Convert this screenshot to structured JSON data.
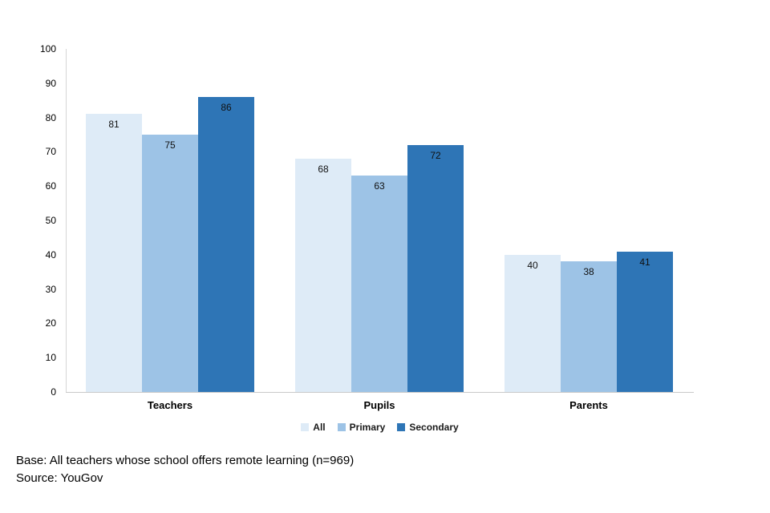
{
  "chart_data": {
    "type": "bar",
    "title": "",
    "xlabel": "",
    "ylabel": "",
    "categories": [
      "Teachers",
      "Pupils",
      "Parents"
    ],
    "series": [
      {
        "name": "All",
        "color": "#DEEBF7",
        "values": [
          81,
          68,
          40
        ]
      },
      {
        "name": "Primary",
        "color": "#9DC3E6",
        "values": [
          75,
          63,
          38
        ]
      },
      {
        "name": "Secondary",
        "color": "#2E75B6",
        "values": [
          86,
          72,
          41
        ]
      }
    ],
    "ylim": [
      0,
      100
    ],
    "yticks": [
      0,
      10,
      20,
      30,
      40,
      50,
      60,
      70,
      80,
      90,
      100
    ],
    "grid": false,
    "value_labels": true,
    "legend_position": "bottom"
  },
  "colors": {
    "axis_line": "#d6d6d6",
    "baseline": "#c9c9c9",
    "background": "#ffffff",
    "label_text": "#000000"
  },
  "footer": {
    "base": "Base: All teachers whose school offers remote learning (n=969)",
    "source": "Source: YouGov"
  }
}
